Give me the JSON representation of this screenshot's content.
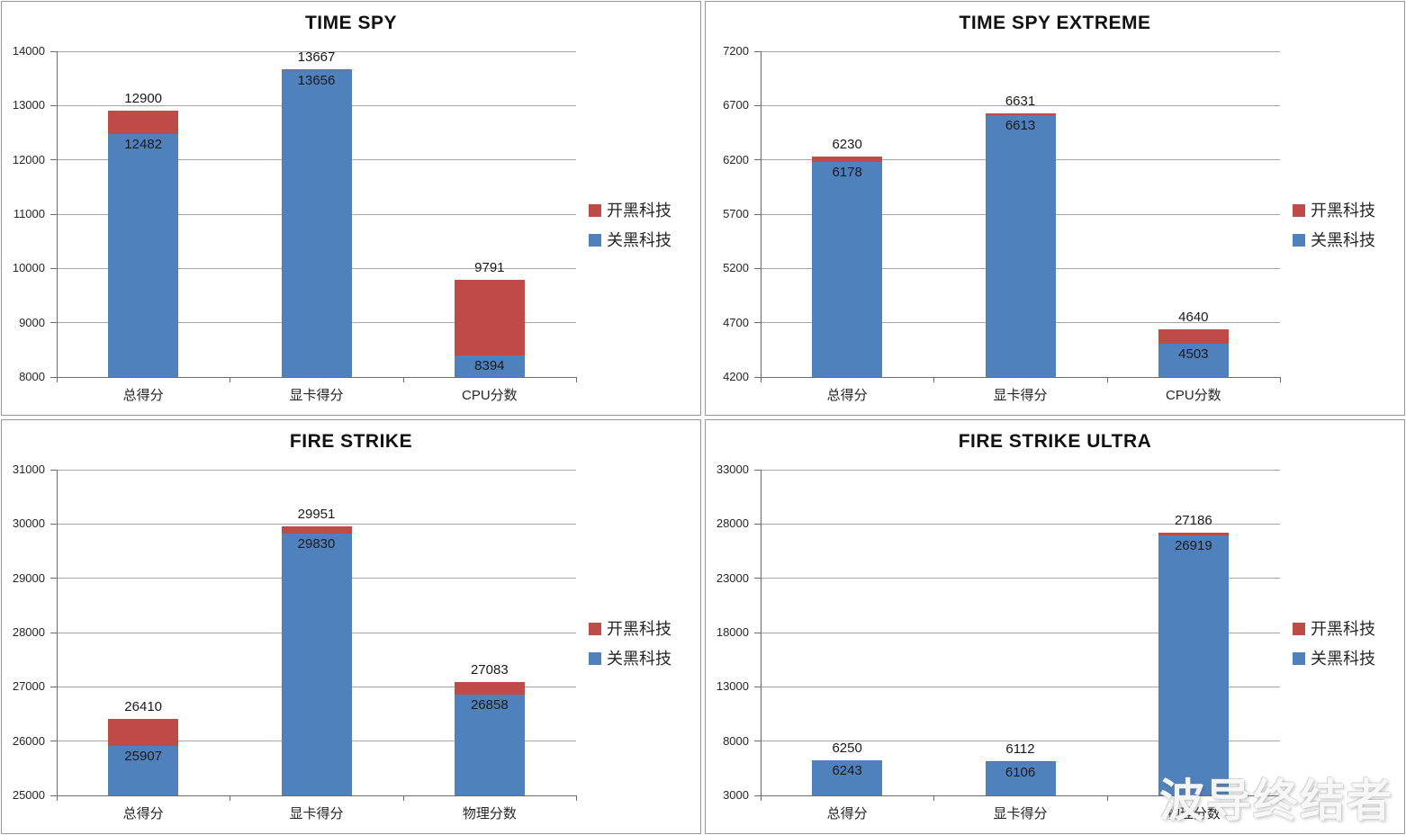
{
  "watermark": {
    "text": "波导终结者"
  },
  "colors": {
    "series_on": "#be4b48",
    "series_off": "#4f81bd",
    "gridline": "#a6a6a6",
    "axis": "#6b6b6b"
  },
  "chart_data": [
    {
      "type": "bar",
      "title": "TIME SPY",
      "categories": [
        "总得分",
        "显卡得分",
        "CPU分数"
      ],
      "series": [
        {
          "name": "开黑科技",
          "color": "#be4b48",
          "values": [
            12900,
            13667,
            9791
          ]
        },
        {
          "name": "关黑科技",
          "color": "#4f81bd",
          "values": [
            12482,
            13656,
            8394
          ]
        }
      ],
      "ylim": [
        8000,
        14000
      ],
      "yticks": [
        8000,
        9000,
        10000,
        11000,
        12000,
        13000,
        14000
      ],
      "legend_position": "right",
      "grid": true,
      "bar_style": "overlapped"
    },
    {
      "type": "bar",
      "title": "TIME SPY EXTREME",
      "categories": [
        "总得分",
        "显卡得分",
        "CPU分数"
      ],
      "series": [
        {
          "name": "开黑科技",
          "color": "#be4b48",
          "values": [
            6230,
            6631,
            4640
          ]
        },
        {
          "name": "关黑科技",
          "color": "#4f81bd",
          "values": [
            6178,
            6613,
            4503
          ]
        }
      ],
      "ylim": [
        4200,
        7200
      ],
      "yticks": [
        4200,
        4700,
        5200,
        5700,
        6200,
        6700,
        7200
      ],
      "legend_position": "right",
      "grid": true,
      "bar_style": "overlapped"
    },
    {
      "type": "bar",
      "title": "FIRE STRIKE",
      "categories": [
        "总得分",
        "显卡得分",
        "物理分数"
      ],
      "series": [
        {
          "name": "开黑科技",
          "color": "#be4b48",
          "values": [
            26410,
            29951,
            27083
          ]
        },
        {
          "name": "关黑科技",
          "color": "#4f81bd",
          "values": [
            25907,
            29830,
            26858
          ]
        }
      ],
      "ylim": [
        25000,
        31000
      ],
      "yticks": [
        25000,
        26000,
        27000,
        28000,
        29000,
        30000,
        31000
      ],
      "legend_position": "right",
      "grid": true,
      "bar_style": "overlapped"
    },
    {
      "type": "bar",
      "title": "FIRE STRIKE ULTRA",
      "categories": [
        "总得分",
        "显卡得分",
        "物理分数"
      ],
      "series": [
        {
          "name": "开黑科技",
          "color": "#be4b48",
          "values": [
            6250,
            6112,
            27186
          ]
        },
        {
          "name": "关黑科技",
          "color": "#4f81bd",
          "values": [
            6243,
            6106,
            26919
          ]
        }
      ],
      "ylim": [
        3000,
        33000
      ],
      "yticks": [
        3000,
        8000,
        13000,
        18000,
        23000,
        28000,
        33000
      ],
      "legend_position": "right",
      "grid": true,
      "bar_style": "overlapped"
    }
  ]
}
